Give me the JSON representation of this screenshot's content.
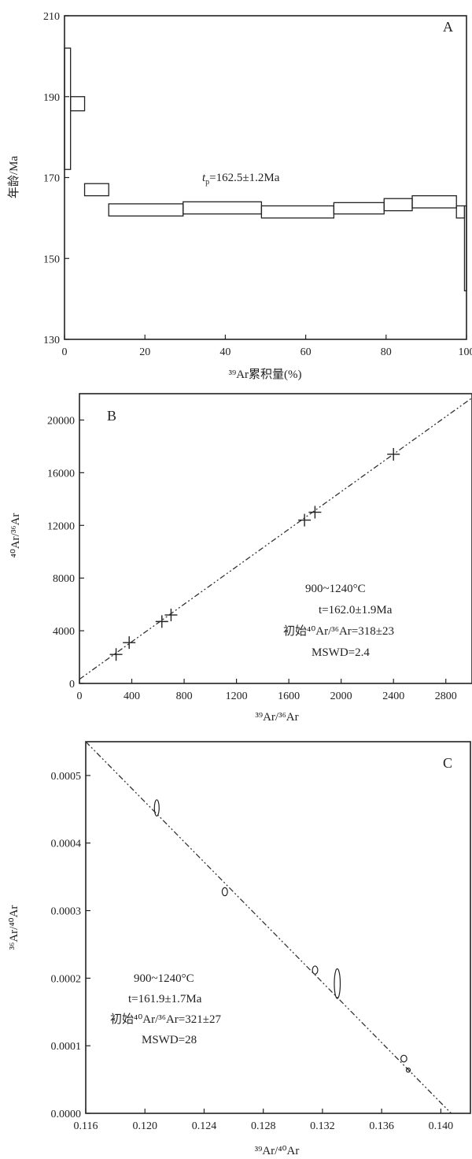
{
  "chart_data": [
    {
      "panel": "A",
      "type": "step-plateau",
      "xlabel": "³⁹Ar累积量(%)",
      "ylabel": "年龄/Ma",
      "xlim": [
        0,
        100
      ],
      "ylim": [
        130,
        210
      ],
      "xticks": [
        0,
        20,
        40,
        60,
        80,
        100
      ],
      "yticks": [
        130,
        150,
        170,
        190,
        210
      ],
      "steps": [
        {
          "x0": 0.0,
          "x1": 1.5,
          "lo": 172,
          "hi": 202
        },
        {
          "x0": 1.5,
          "x1": 5.0,
          "lo": 186.5,
          "hi": 190
        },
        {
          "x0": 5.0,
          "x1": 11.0,
          "lo": 165.5,
          "hi": 168.5
        },
        {
          "x0": 11.0,
          "x1": 29.5,
          "lo": 160.5,
          "hi": 163.5
        },
        {
          "x0": 29.5,
          "x1": 49.0,
          "lo": 161.0,
          "hi": 164.0
        },
        {
          "x0": 49.0,
          "x1": 67.0,
          "lo": 160.0,
          "hi": 163.0
        },
        {
          "x0": 67.0,
          "x1": 79.5,
          "lo": 161.0,
          "hi": 163.8
        },
        {
          "x0": 79.5,
          "x1": 86.5,
          "lo": 161.8,
          "hi": 164.8
        },
        {
          "x0": 86.5,
          "x1": 97.5,
          "lo": 162.5,
          "hi": 165.5
        },
        {
          "x0": 97.5,
          "x1": 99.5,
          "lo": 160.0,
          "hi": 163.0
        },
        {
          "x0": 99.5,
          "x1": 100.0,
          "lo": 142.0,
          "hi": 163.0
        }
      ],
      "annotation": "t",
      "annotation_sub": "p",
      "annotation_rest": "=162.5±1.2Ma"
    },
    {
      "panel": "B",
      "type": "scatter",
      "xlabel": "³⁹Ar/³⁶Ar",
      "ylabel": "⁴⁰Ar/³⁶Ar",
      "xlim": [
        0,
        3000
      ],
      "ylim": [
        0,
        22000
      ],
      "xticks": [
        0,
        400,
        800,
        1200,
        1600,
        2000,
        2400,
        2800
      ],
      "yticks": [
        0,
        4000,
        8000,
        12000,
        16000,
        20000
      ],
      "points": [
        {
          "x": 280,
          "y": 2200
        },
        {
          "x": 380,
          "y": 3100
        },
        {
          "x": 630,
          "y": 4700
        },
        {
          "x": 700,
          "y": 5200
        },
        {
          "x": 1720,
          "y": 12400
        },
        {
          "x": 1800,
          "y": 13000
        },
        {
          "x": 2400,
          "y": 17400
        }
      ],
      "fit_line": {
        "intercept": 318,
        "slope": 7.12
      },
      "annotations": [
        "900~1240°C",
        "t=162.0±1.9Ma",
        "初始⁴⁰Ar/³⁶Ar=318±23",
        "MSWD=2.4"
      ]
    },
    {
      "panel": "C",
      "type": "scatter",
      "xlabel": "³⁹Ar/⁴⁰Ar",
      "ylabel": "³⁶Ar/⁴⁰Ar",
      "xlim": [
        0.116,
        0.142
      ],
      "ylim": [
        0.0,
        0.00055
      ],
      "xticks": [
        "0.116",
        "0.120",
        "0.124",
        "0.128",
        "0.132",
        "0.136",
        "0.140"
      ],
      "yticks": [
        "0.0000",
        "0.0001",
        "0.0002",
        "0.0003",
        "0.0004",
        "0.0005"
      ],
      "points": [
        {
          "x": 0.1208,
          "y": 0.000452,
          "rx": 0.00016,
          "ry": 1.2e-05
        },
        {
          "x": 0.1254,
          "y": 0.000328,
          "rx": 0.00018,
          "ry": 6e-06
        },
        {
          "x": 0.1315,
          "y": 0.000212,
          "rx": 0.00018,
          "ry": 6e-06
        },
        {
          "x": 0.133,
          "y": 0.000192,
          "rx": 0.0002,
          "ry": 2.2e-05
        },
        {
          "x": 0.1375,
          "y": 8.1e-05,
          "rx": 0.0002,
          "ry": 5e-06
        },
        {
          "x": 0.1378,
          "y": 6.4e-05,
          "rx": 0.0001,
          "ry": 3e-06
        }
      ],
      "fit_line": {
        "x0": 0.116,
        "y0": 0.00055,
        "x1": 0.1407,
        "y1": 0.0
      },
      "annotations": [
        "900~1240°C",
        "t=161.9±1.7Ma",
        "初始⁴⁰Ar/³⁶Ar=321±27",
        "MSWD=28"
      ]
    }
  ]
}
